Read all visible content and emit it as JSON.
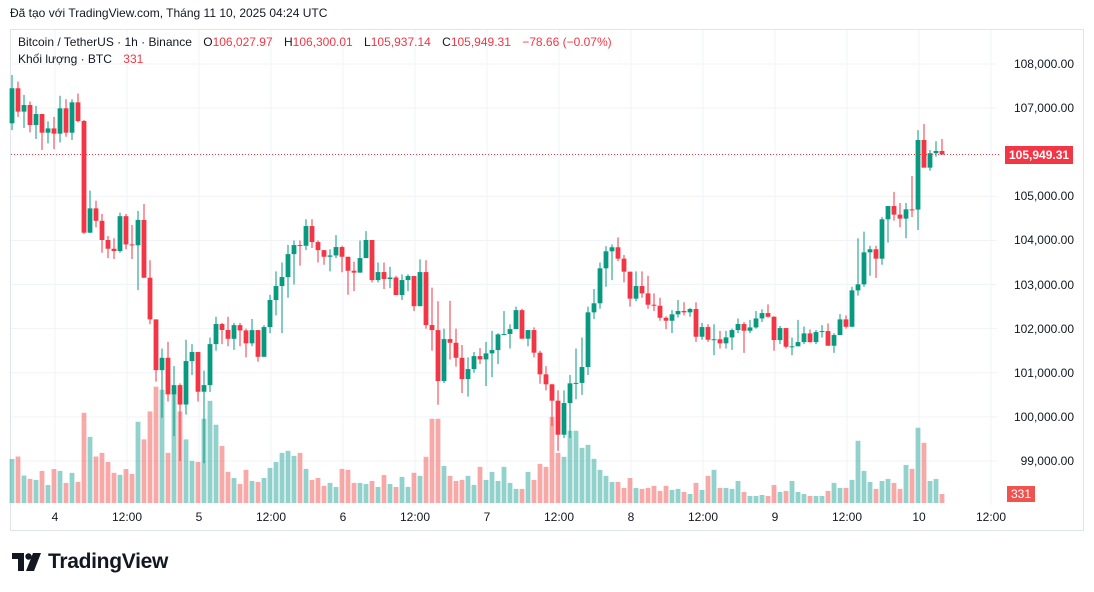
{
  "caption": "Đã tạo với TradingView.com, Tháng 11 10, 2025 04:24 UTC",
  "legend": {
    "symbol": "Bitcoin / TetherUS · 1h · Binance",
    "o_label": "O",
    "o_value": "106,027.97",
    "h_label": "H",
    "h_value": "106,300.01",
    "l_label": "L",
    "l_value": "105,937.14",
    "c_label": "C",
    "c_value": "105,949.31",
    "change": "−78.66 (−0.07%)",
    "volume_label": "Khối lượng · BTC",
    "volume_value": "331"
  },
  "logo_text": "TradingView",
  "colors": {
    "up": "#089981",
    "down": "#f23645",
    "up_volume": "#26a69a",
    "down_volume": "#ef5350",
    "grid": "#f0f3fa"
  },
  "chart_data": {
    "type": "candlestick",
    "interval": "1h",
    "first_bar": "2025-11-03 17:00",
    "last_bar": "2025-11-10 04:00",
    "price_ylim": [
      98500,
      108300
    ],
    "price_ticks": [
      "108,000.00",
      "107,000.00",
      "105,000.00",
      "104,000.00",
      "103,000.00",
      "102,000.00",
      "101,000.00",
      "100,000.00",
      "99,000.00"
    ],
    "price_tick_values": [
      108000,
      107000,
      105000,
      104000,
      103000,
      102000,
      101000,
      100000,
      99000
    ],
    "last_price_label": "105,949.31",
    "last_volume_label": "331",
    "time_ticks": [
      "4",
      "12:00",
      "5",
      "12:00",
      "6",
      "12:00",
      "7",
      "12:00",
      "8",
      "12:00",
      "9",
      "12:00",
      "10",
      "12:00"
    ],
    "grid": true,
    "candle_fields": [
      "open",
      "high",
      "low",
      "close",
      "volume"
    ],
    "candles": [
      [
        106655,
        107750,
        106500,
        107450,
        1620
      ],
      [
        107450,
        107600,
        106800,
        106920,
        1710
      ],
      [
        106920,
        107300,
        106550,
        107070,
        1010
      ],
      [
        107070,
        107150,
        106450,
        106617,
        890
      ],
      [
        106617,
        107050,
        106300,
        106866,
        850
      ],
      [
        106866,
        106866,
        106050,
        106443,
        1180
      ],
      [
        106443,
        106700,
        106200,
        106540,
        660
      ],
      [
        106540,
        106800,
        106070,
        106420,
        1250
      ],
      [
        106420,
        107280,
        106220,
        106995,
        1180
      ],
      [
        106995,
        107200,
        106350,
        106443,
        740
      ],
      [
        106443,
        107200,
        106280,
        107131,
        1110
      ],
      [
        107131,
        107330,
        106680,
        106707,
        775
      ],
      [
        106707,
        106730,
        104150,
        104175,
        3320
      ],
      [
        104175,
        105130,
        104175,
        104727,
        2435
      ],
      [
        104727,
        104900,
        104300,
        104445,
        1710
      ],
      [
        104445,
        104600,
        103720,
        104010,
        1845
      ],
      [
        104010,
        104100,
        103600,
        103812,
        1510
      ],
      [
        103812,
        104050,
        103580,
        103760,
        1110
      ],
      [
        103760,
        104630,
        103720,
        104550,
        1035
      ],
      [
        104550,
        104600,
        103800,
        103910,
        1250
      ],
      [
        103910,
        104350,
        103580,
        103890,
        1070
      ],
      [
        103890,
        104667,
        102875,
        104465,
        2990
      ],
      [
        104465,
        104825,
        103155,
        103155,
        2340
      ],
      [
        103155,
        103550,
        102100,
        102210,
        3370
      ],
      [
        102210,
        102210,
        100800,
        101060,
        4280
      ],
      [
        101060,
        101550,
        99980,
        101340,
        4170
      ],
      [
        101340,
        101700,
        100350,
        100510,
        1845
      ],
      [
        100510,
        101150,
        99565,
        100720,
        4020
      ],
      [
        100720,
        100760,
        99000,
        100280,
        3370
      ],
      [
        100280,
        101750,
        100050,
        101265,
        2340
      ],
      [
        101265,
        101650,
        100950,
        101470,
        1550
      ],
      [
        101470,
        101470,
        100350,
        100570,
        1510
      ],
      [
        100570,
        101050,
        98950,
        100720,
        3100
      ],
      [
        100720,
        101800,
        100560,
        101650,
        3760
      ],
      [
        101650,
        102270,
        101500,
        102105,
        2880
      ],
      [
        102105,
        102130,
        101650,
        101970,
        2100
      ],
      [
        101970,
        102270,
        101600,
        101770,
        1145
      ],
      [
        101770,
        102130,
        101520,
        102080,
        920
      ],
      [
        102080,
        102130,
        101600,
        101960,
        700
      ],
      [
        101960,
        102000,
        101350,
        101667,
        1220
      ],
      [
        101667,
        102220,
        101600,
        101967,
        810
      ],
      [
        101967,
        101967,
        101250,
        101362,
        775
      ],
      [
        101362,
        102080,
        101362,
        102036,
        920
      ],
      [
        102036,
        102770,
        101900,
        102650,
        1290
      ],
      [
        102650,
        103300,
        102300,
        102966,
        1510
      ],
      [
        102966,
        103500,
        101900,
        103170,
        1845
      ],
      [
        103170,
        103900,
        102700,
        103690,
        1920
      ],
      [
        103690,
        104000,
        103000,
        103895,
        1735
      ],
      [
        103895,
        104000,
        103430,
        103880,
        1845
      ],
      [
        103880,
        104480,
        103780,
        104326,
        1255
      ],
      [
        104326,
        104480,
        103830,
        103963,
        850
      ],
      [
        103963,
        104000,
        103500,
        103780,
        920
      ],
      [
        103780,
        103780,
        103450,
        103630,
        630
      ],
      [
        103630,
        103800,
        103300,
        103660,
        740
      ],
      [
        103660,
        104120,
        103600,
        103850,
        590
      ],
      [
        103850,
        103880,
        103280,
        103630,
        1255
      ],
      [
        103630,
        103630,
        102770,
        103313,
        1220
      ],
      [
        103313,
        103520,
        102850,
        103270,
        740
      ],
      [
        103270,
        104000,
        103270,
        103600,
        740
      ],
      [
        103600,
        104210,
        103600,
        104010,
        700
      ],
      [
        104010,
        104010,
        103050,
        103102,
        810
      ],
      [
        103102,
        103500,
        103050,
        103283,
        590
      ],
      [
        103283,
        103500,
        102900,
        103125,
        1030
      ],
      [
        103125,
        103400,
        102920,
        103160,
        700
      ],
      [
        103160,
        103200,
        102762,
        102762,
        590
      ],
      [
        102762,
        103230,
        102650,
        103102,
        960
      ],
      [
        103102,
        103230,
        102850,
        103193,
        590
      ],
      [
        103193,
        103193,
        102400,
        102510,
        1110
      ],
      [
        102510,
        103570,
        102510,
        103283,
        1000
      ],
      [
        103283,
        103550,
        102000,
        102082,
        1700
      ],
      [
        102082,
        102930,
        101500,
        101968,
        3100
      ],
      [
        101968,
        102620,
        100275,
        100812,
        3100
      ],
      [
        100812,
        102000,
        100767,
        101764,
        1365
      ],
      [
        101764,
        102630,
        101300,
        101680,
        1000
      ],
      [
        101680,
        102000,
        101140,
        101340,
        810
      ],
      [
        101340,
        101630,
        100540,
        100857,
        850
      ],
      [
        100857,
        101350,
        100460,
        101084,
        1000
      ],
      [
        101084,
        101470,
        101000,
        101378,
        665
      ],
      [
        101378,
        101560,
        101200,
        101303,
        1330
      ],
      [
        101303,
        101700,
        100700,
        101440,
        850
      ],
      [
        101440,
        101950,
        100900,
        101515,
        1145
      ],
      [
        101515,
        101900,
        101200,
        101870,
        810
      ],
      [
        101870,
        102400,
        101850,
        101880,
        1330
      ],
      [
        101880,
        102100,
        101550,
        101990,
        740
      ],
      [
        101990,
        102500,
        101990,
        102420,
        520
      ],
      [
        102420,
        102450,
        101772,
        101772,
        520
      ],
      [
        101772,
        101968,
        101600,
        101968,
        1145
      ],
      [
        101968,
        102030,
        101350,
        101455,
        850
      ],
      [
        101455,
        101500,
        100750,
        100965,
        1440
      ],
      [
        100965,
        101150,
        100600,
        100738,
        1330
      ],
      [
        100738,
        100750,
        99790,
        100367,
        3170
      ],
      [
        100367,
        100600,
        99230,
        99596,
        1845
      ],
      [
        99596,
        100600,
        99520,
        100313,
        1700
      ],
      [
        100313,
        100950,
        99520,
        100760,
        2660
      ],
      [
        100760,
        101550,
        100400,
        100770,
        2660
      ],
      [
        100770,
        101800,
        100500,
        101130,
        2030
      ],
      [
        101130,
        102500,
        100950,
        102370,
        2140
      ],
      [
        102370,
        102900,
        102220,
        102575,
        1625
      ],
      [
        102575,
        103500,
        102450,
        103368,
        1220
      ],
      [
        103368,
        103870,
        102950,
        103754,
        1000
      ],
      [
        103754,
        103910,
        103100,
        103845,
        775
      ],
      [
        103845,
        104070,
        103530,
        103587,
        775
      ],
      [
        103587,
        103670,
        103050,
        103292,
        555
      ],
      [
        103292,
        103292,
        102500,
        102680,
        920
      ],
      [
        102680,
        103300,
        102620,
        102966,
        555
      ],
      [
        102966,
        103300,
        102700,
        102800,
        520
      ],
      [
        102800,
        103200,
        102450,
        102543,
        555
      ],
      [
        102543,
        102800,
        102400,
        102520,
        630
      ],
      [
        102520,
        102700,
        102180,
        102247,
        445
      ],
      [
        102247,
        102280,
        101990,
        102180,
        630
      ],
      [
        102180,
        102420,
        101900,
        102325,
        480
      ],
      [
        102325,
        102650,
        102250,
        102400,
        520
      ],
      [
        102400,
        102600,
        102300,
        102370,
        405
      ],
      [
        102370,
        102470,
        102270,
        102445,
        330
      ],
      [
        102445,
        102600,
        101700,
        101817,
        740
      ],
      [
        101817,
        102130,
        101750,
        102036,
        480
      ],
      [
        102036,
        102100,
        101700,
        101749,
        1000
      ],
      [
        101749,
        102100,
        101400,
        101760,
        1220
      ],
      [
        101760,
        101950,
        101550,
        101667,
        555
      ],
      [
        101667,
        101950,
        101550,
        101802,
        555
      ],
      [
        101802,
        102000,
        101520,
        101968,
        520
      ],
      [
        101968,
        102230,
        101900,
        102105,
        810
      ],
      [
        102105,
        102150,
        101450,
        101953,
        405
      ],
      [
        101953,
        102200,
        101900,
        102028,
        260
      ],
      [
        102028,
        102400,
        102000,
        102232,
        260
      ],
      [
        102232,
        102440,
        102150,
        102353,
        295
      ],
      [
        102353,
        102550,
        102250,
        102270,
        260
      ],
      [
        102270,
        102280,
        101500,
        101741,
        665
      ],
      [
        101741,
        102060,
        101650,
        102013,
        405
      ],
      [
        102013,
        102013,
        101550,
        101590,
        445
      ],
      [
        101590,
        101800,
        101400,
        101600,
        810
      ],
      [
        101600,
        102200,
        101600,
        101696,
        405
      ],
      [
        101696,
        102050,
        101650,
        101893,
        330
      ],
      [
        101893,
        101980,
        101680,
        101696,
        260
      ],
      [
        101696,
        101970,
        101650,
        101923,
        260
      ],
      [
        101923,
        102080,
        101800,
        101945,
        260
      ],
      [
        101945,
        102120,
        101613,
        101613,
        445
      ],
      [
        101613,
        101900,
        101450,
        101855,
        740
      ],
      [
        101855,
        102330,
        101855,
        102210,
        555
      ],
      [
        102210,
        102300,
        102000,
        102043,
        555
      ],
      [
        102043,
        102950,
        102043,
        102868,
        850
      ],
      [
        102868,
        104050,
        102750,
        103005,
        2290
      ],
      [
        103005,
        104200,
        102950,
        103730,
        1180
      ],
      [
        103730,
        103880,
        103200,
        103800,
        775
      ],
      [
        103800,
        103880,
        103150,
        103587,
        520
      ],
      [
        103587,
        104530,
        103450,
        104480,
        810
      ],
      [
        104480,
        104780,
        103950,
        104780,
        885
      ],
      [
        104780,
        105100,
        104450,
        104585,
        740
      ],
      [
        104585,
        104850,
        104300,
        104495,
        520
      ],
      [
        104495,
        104850,
        104050,
        104705,
        1400
      ],
      [
        104705,
        105460,
        104530,
        104700,
        1255
      ],
      [
        104700,
        106500,
        104236,
        106277,
        2770
      ],
      [
        106277,
        106640,
        105650,
        105650,
        2215
      ],
      [
        105650,
        106050,
        105580,
        105977,
        810
      ],
      [
        105977,
        106250,
        105900,
        106028,
        885
      ],
      [
        106027.97,
        106300.01,
        105937.14,
        105949.31,
        331
      ]
    ]
  }
}
